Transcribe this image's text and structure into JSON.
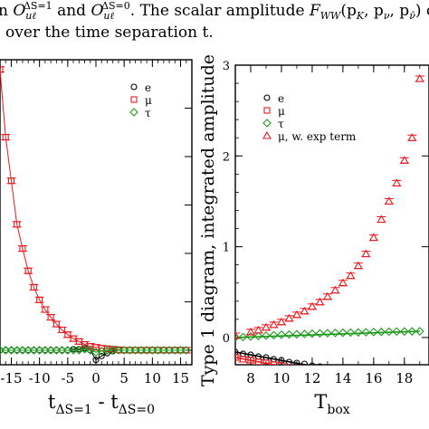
{
  "caption": {
    "line1": "n O_{uℓ}^{ΔS=1} and O_{uℓ}^{ΔS=0}. The scalar amplitude F_{WW}(p_K, p_ν, p_ν̄) can be",
    "line1_parts": [
      "n ",
      "O",
      "uℓ",
      "ΔS=1",
      " and ",
      "O",
      "uℓ",
      "ΔS=0",
      ". The scalar amplitude ",
      "F",
      "WW",
      "(p",
      "K",
      ", p",
      "ν",
      ", p",
      "ν̄",
      ") can be"
    ],
    "line2": ") over the time separation t."
  },
  "chart_data": [
    {
      "type": "scatter",
      "title": "",
      "xlabel": "t_{ΔS=1} - t_{ΔS=0}",
      "xlabel_parts": [
        "t",
        "ΔS=1",
        " - t",
        "ΔS=0"
      ],
      "ylabel": "",
      "xlim": [
        -17,
        17
      ],
      "ylim": [
        -0.15,
        3.0
      ],
      "xticks": [
        -15,
        -10,
        -5,
        0,
        5,
        10,
        15
      ],
      "xtick_labels": [
        "-15",
        "-10",
        "-5",
        "0",
        "5",
        "10",
        "15"
      ],
      "grid": false,
      "legend": "top-right",
      "series": [
        {
          "name": "e",
          "marker": "circle",
          "color": "#000000",
          "x": [
            -17,
            -16,
            -15,
            -14,
            -13,
            -12,
            -11,
            -10,
            -9,
            -8,
            -7,
            -6,
            -5,
            -4,
            -3,
            -2,
            -1,
            0,
            1,
            2,
            3,
            4,
            5,
            6,
            7,
            8,
            9,
            10,
            11,
            12,
            13,
            14,
            15,
            16
          ],
          "y": [
            0.0,
            0.0,
            0.0,
            0.0,
            0.0,
            0.0,
            0.0,
            0.0,
            0.0,
            0.0,
            0.0,
            0.0,
            0.0,
            0.01,
            0.01,
            0.02,
            0.0,
            -0.1,
            -0.06,
            -0.03,
            -0.01,
            0.0,
            0.0,
            0.0,
            0.0,
            0.0,
            0.0,
            0.0,
            0.0,
            0.0,
            0.0,
            0.0,
            0.0,
            0.0
          ]
        },
        {
          "name": "μ",
          "marker": "square",
          "color": "#e8191e",
          "x": [
            -17,
            -16,
            -15,
            -14,
            -13,
            -12,
            -11,
            -10,
            -9,
            -8,
            -7,
            -6,
            -5,
            -4,
            -3,
            -2,
            -1,
            0,
            1,
            2,
            3,
            4,
            5,
            6,
            7,
            8,
            9,
            10,
            11,
            12,
            13,
            14,
            15,
            16
          ],
          "y": [
            2.9,
            2.2,
            1.75,
            1.3,
            1.05,
            0.82,
            0.65,
            0.52,
            0.42,
            0.34,
            0.27,
            0.21,
            0.16,
            0.12,
            0.09,
            0.06,
            0.04,
            0.03,
            0.02,
            0.015,
            0.01,
            0.005,
            0.0,
            0.0,
            0.0,
            0.0,
            0.0,
            0.0,
            0.0,
            0.0,
            0.0,
            0.0,
            0.0,
            0.0
          ]
        },
        {
          "name": "τ",
          "marker": "diamond",
          "color": "#1a9a1a",
          "x": [
            -17,
            -16,
            -15,
            -14,
            -13,
            -12,
            -11,
            -10,
            -9,
            -8,
            -7,
            -6,
            -5,
            -4,
            -3,
            -2,
            -1,
            0,
            1,
            2,
            3,
            4,
            5,
            6,
            7,
            8,
            9,
            10,
            11,
            12,
            13,
            14,
            15,
            16
          ],
          "y": [
            0.0,
            0.0,
            0.0,
            0.0,
            0.0,
            0.0,
            0.0,
            0.0,
            0.0,
            0.0,
            0.0,
            0.0,
            0.0,
            0.0,
            0.0,
            0.01,
            0.0,
            -0.02,
            -0.01,
            0.0,
            0.0,
            0.0,
            0.0,
            0.0,
            0.0,
            0.0,
            0.0,
            0.0,
            0.0,
            0.0,
            0.0,
            0.0,
            0.0,
            0.0
          ]
        }
      ]
    },
    {
      "type": "scatter",
      "title": "",
      "xlabel": "T_{box}",
      "xlabel_parts": [
        "T",
        "box"
      ],
      "ylabel": "Type 1 diagram, integrated amplitude",
      "xlim": [
        7,
        19.6
      ],
      "ylim": [
        -0.3,
        3.0
      ],
      "xticks": [
        8,
        10,
        12,
        14,
        16,
        18
      ],
      "xtick_labels": [
        "8",
        "10",
        "12",
        "14",
        "16",
        "18"
      ],
      "yticks": [
        0,
        1,
        2,
        3
      ],
      "ytick_labels": [
        "0",
        "1",
        "2",
        "3"
      ],
      "grid": false,
      "legend": "top-left",
      "series": [
        {
          "name": "e",
          "marker": "circle",
          "color": "#000000",
          "x": [
            7,
            7.5,
            8,
            8.5,
            9,
            9.5,
            10,
            10.5,
            11,
            11.5,
            12,
            12.5,
            13,
            13.5,
            14,
            14.5,
            15,
            15.5,
            16,
            16.5,
            17,
            17.5,
            18,
            18.5,
            19
          ],
          "y": [
            -0.16,
            -0.18,
            -0.19,
            -0.21,
            -0.22,
            -0.24,
            -0.25,
            -0.27,
            -0.28,
            -0.29,
            -0.31,
            -0.32,
            -0.34,
            -0.35,
            -0.37,
            -0.38,
            -0.4,
            -0.41,
            -0.43,
            -0.44,
            -0.46,
            -0.47,
            -0.49,
            -0.51,
            -0.53
          ]
        },
        {
          "name": "μ",
          "marker": "square",
          "color": "#e8191e",
          "x": [
            7,
            7.5,
            8,
            8.5,
            9,
            9.5,
            10,
            10.5,
            11,
            11.5,
            12,
            12.5,
            13,
            13.5,
            14,
            14.5,
            15,
            15.5,
            16,
            16.5,
            17,
            17.5,
            18,
            18.5,
            19
          ],
          "y": [
            -0.22,
            -0.24,
            -0.25,
            -0.27,
            -0.28,
            -0.3,
            -0.31,
            -0.33,
            -0.35,
            -0.36,
            -0.38,
            -0.39,
            -0.41,
            -0.42,
            -0.44,
            -0.46,
            -0.47,
            -0.49,
            -0.51,
            -0.52,
            -0.54,
            -0.55,
            -0.57,
            -0.59,
            -0.6
          ]
        },
        {
          "name": "τ",
          "marker": "diamond",
          "color": "#1a9a1a",
          "x": [
            7,
            7.5,
            8,
            8.5,
            9,
            9.5,
            10,
            10.5,
            11,
            11.5,
            12,
            12.5,
            13,
            13.5,
            14,
            14.5,
            15,
            15.5,
            16,
            16.5,
            17,
            17.5,
            18,
            18.5,
            19
          ],
          "y": [
            0.0,
            0.005,
            0.01,
            0.015,
            0.02,
            0.025,
            0.03,
            0.033,
            0.036,
            0.039,
            0.042,
            0.045,
            0.048,
            0.05,
            0.052,
            0.054,
            0.056,
            0.058,
            0.06,
            0.062,
            0.064,
            0.065,
            0.066,
            0.067,
            0.068
          ]
        },
        {
          "name": "μ, w. exp term",
          "marker": "triangle",
          "color": "#e8191e",
          "x": [
            7,
            8,
            8.5,
            9,
            9.5,
            10,
            10.5,
            11,
            11.5,
            12,
            12.5,
            13,
            13.5,
            14,
            14.5,
            15,
            15.5,
            16,
            16.5,
            17,
            17.5,
            18,
            18.5,
            19
          ],
          "y": [
            0.02,
            0.06,
            0.08,
            0.11,
            0.14,
            0.17,
            0.21,
            0.25,
            0.29,
            0.34,
            0.39,
            0.45,
            0.52,
            0.6,
            0.68,
            0.79,
            0.92,
            1.1,
            1.3,
            1.5,
            1.7,
            1.95,
            2.2,
            2.85
          ]
        }
      ]
    }
  ]
}
